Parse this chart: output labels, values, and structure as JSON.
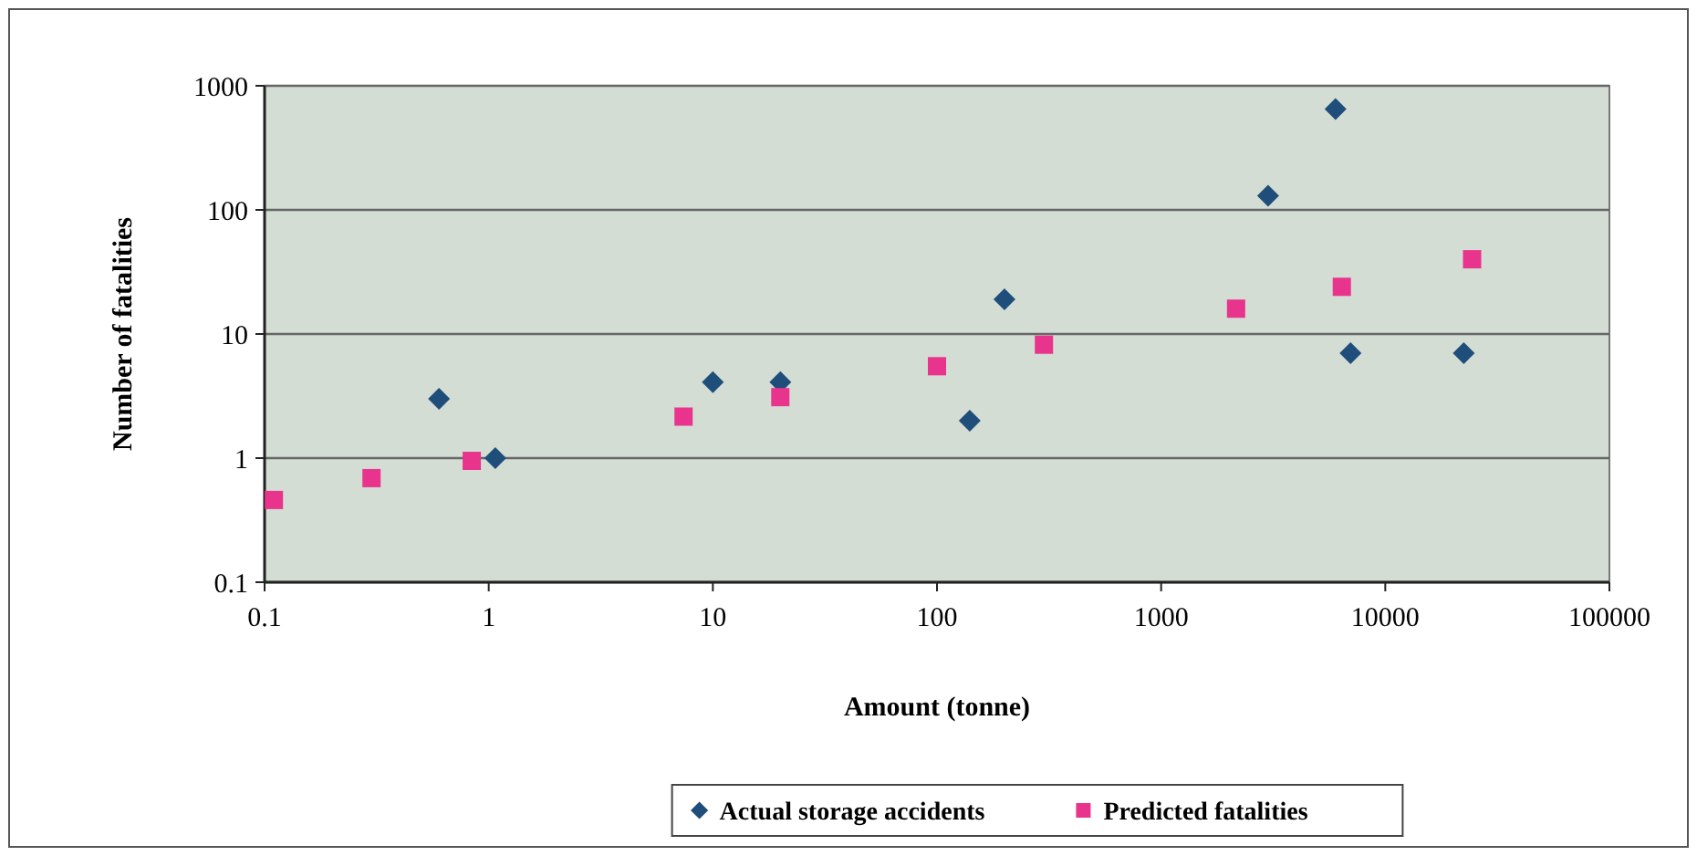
{
  "chart_data": {
    "type": "scatter",
    "xlabel": "Amount (tonne)",
    "ylabel": "Number of fatalities",
    "log": "xy",
    "grid": "y",
    "legend": "bottom",
    "xlim": [
      0.1,
      100000
    ],
    "xticks": [
      0.1,
      1,
      10,
      100,
      1000,
      10000,
      100000
    ],
    "ylim": [
      0.1,
      1000
    ],
    "yticks": [
      0.1,
      1,
      10,
      100,
      1000
    ],
    "series": [
      {
        "name": "Actual storage accidents",
        "color": "#1f4e7a",
        "marker": "diamond",
        "x": [
          0.6,
          1.07,
          10,
          20,
          140,
          200,
          3000,
          6000,
          7000,
          22400
        ],
        "values": [
          3,
          1,
          4.1,
          4.1,
          2,
          19,
          130,
          650,
          7,
          7
        ]
      },
      {
        "name": "Predicted fatalities",
        "color": "#e8348c",
        "marker": "square",
        "x": [
          0.11,
          0.3,
          0.84,
          7.4,
          20,
          100,
          300,
          2160,
          6400,
          24400
        ],
        "values": [
          0.46,
          0.69,
          0.95,
          2.16,
          3.1,
          5.5,
          8.2,
          16,
          24,
          40
        ]
      }
    ]
  }
}
